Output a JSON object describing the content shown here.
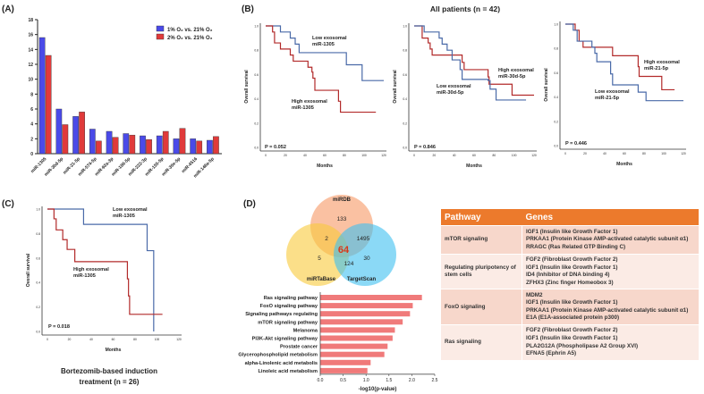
{
  "panel_labels": {
    "a": "(A)",
    "b": "(B)",
    "c": "(C)",
    "d": "(D)"
  },
  "b_title": "All patients (n = 42)",
  "c_caption": [
    "Bortezomib-based induction",
    "treatment (n = 26)"
  ],
  "colors": {
    "blue": "#4a4ae8",
    "red": "#e03a3a",
    "km_blue": "#4a6aa8",
    "km_red": "#b22a2a",
    "bars_d": "#f07a7a",
    "orange": "#ec7a2c"
  },
  "chart_data": [
    {
      "id": "A",
      "type": "bar",
      "categories": [
        "miR-1305",
        "miR-30d-5p",
        "miR-21-5p",
        "miR-574-5p",
        "miR-92a-3p",
        "miR-186-5p",
        "miR-222-3p",
        "miR-155-5p",
        "miR-30e-5p",
        "miR-4516",
        "miR-146a-5p"
      ],
      "series": [
        {
          "name": "1%  O₂ vs. 21%  O₂",
          "values": [
            15.6,
            6.0,
            5.0,
            3.3,
            3.0,
            2.7,
            2.4,
            2.4,
            2.0,
            2.0,
            1.8
          ]
        },
        {
          "name": "2%  O₂ vs. 21%  O₂",
          "values": [
            13.2,
            3.9,
            5.6,
            1.7,
            2.2,
            2.5,
            1.9,
            3.0,
            3.4,
            1.7,
            2.3
          ]
        }
      ],
      "ylim": [
        0,
        18
      ],
      "yticks": [
        0,
        2,
        4,
        6,
        8,
        10,
        12,
        14,
        16,
        18
      ],
      "legend": "top-right"
    },
    {
      "id": "B1",
      "type": "line",
      "xlabel": "Months",
      "ylabel": "Overall survival",
      "xticks": [
        0,
        20,
        40,
        60,
        80,
        100,
        120
      ],
      "yticks": [
        "0.0",
        "0.2",
        "0.4",
        "0.6",
        "0.8",
        "1.0"
      ],
      "pvalue": "P = 0.052",
      "series": [
        {
          "name": [
            "Low exosomal",
            "miR-1305"
          ],
          "color": "blue",
          "steps": [
            [
              0,
              1
            ],
            [
              15,
              0.95
            ],
            [
              25,
              0.9
            ],
            [
              30,
              0.85
            ],
            [
              34,
              0.78
            ],
            [
              82,
              0.68
            ],
            [
              98,
              0.55
            ]
          ],
          "end": 120
        },
        {
          "name": [
            "High exosomal",
            "miR-1305"
          ],
          "color": "red",
          "steps": [
            [
              0,
              1
            ],
            [
              7,
              0.95
            ],
            [
              9,
              0.86
            ],
            [
              15,
              0.81
            ],
            [
              25,
              0.76
            ],
            [
              28,
              0.71
            ],
            [
              43,
              0.66
            ],
            [
              47,
              0.62
            ],
            [
              48,
              0.57
            ],
            [
              50,
              0.47
            ],
            [
              74,
              0.38
            ],
            [
              76,
              0.29
            ]
          ],
          "end": 112
        }
      ]
    },
    {
      "id": "B2",
      "type": "line",
      "xlabel": "Months",
      "ylabel": "Overall survival",
      "xticks": [
        0,
        20,
        40,
        60,
        80,
        100,
        120
      ],
      "yticks": [
        "0.0",
        "0.2",
        "0.4",
        "0.6",
        "0.8",
        "1.0"
      ],
      "pvalue": "P = 0.846",
      "series": [
        {
          "name": [
            "High exosomal",
            "miR-30d-5p"
          ],
          "color": "red",
          "steps": [
            [
              0,
              1
            ],
            [
              8,
              0.9
            ],
            [
              14,
              0.86
            ],
            [
              16,
              0.81
            ],
            [
              18,
              0.76
            ],
            [
              48,
              0.7
            ],
            [
              50,
              0.64
            ],
            [
              74,
              0.58
            ],
            [
              75,
              0.52
            ],
            [
              98,
              0.43
            ]
          ],
          "end": 120
        },
        {
          "name": [
            "Low exosomal",
            "miR-30d-5p"
          ],
          "color": "blue",
          "steps": [
            [
              0,
              1
            ],
            [
              10,
              0.95
            ],
            [
              25,
              0.9
            ],
            [
              28,
              0.85
            ],
            [
              33,
              0.8
            ],
            [
              38,
              0.72
            ],
            [
              46,
              0.64
            ],
            [
              48,
              0.56
            ],
            [
              74,
              0.55
            ],
            [
              76,
              0.48
            ],
            [
              82,
              0.39
            ]
          ],
          "end": 112
        }
      ]
    },
    {
      "id": "B3",
      "type": "line",
      "xlabel": "Months",
      "ylabel": "Overall survival",
      "xticks": [
        0,
        20,
        40,
        60,
        80,
        100,
        120
      ],
      "yticks": [
        "0.0",
        "0.2",
        "0.4",
        "0.6",
        "0.8",
        "1.0"
      ],
      "pvalue": "P = 0.446",
      "series": [
        {
          "name": [
            "High exosomal",
            "miR-21-5p"
          ],
          "color": "red",
          "steps": [
            [
              0,
              1
            ],
            [
              10,
              0.95
            ],
            [
              14,
              0.86
            ],
            [
              18,
              0.81
            ],
            [
              48,
              0.74
            ],
            [
              74,
              0.65
            ],
            [
              75,
              0.57
            ],
            [
              98,
              0.46
            ]
          ],
          "end": 111
        },
        {
          "name": [
            "Low exosomal",
            "miR-21-5p"
          ],
          "color": "blue",
          "steps": [
            [
              0,
              1
            ],
            [
              8,
              0.95
            ],
            [
              12,
              0.86
            ],
            [
              27,
              0.81
            ],
            [
              30,
              0.76
            ],
            [
              32,
              0.69
            ],
            [
              46,
              0.59
            ],
            [
              48,
              0.5
            ],
            [
              74,
              0.44
            ],
            [
              82,
              0.37
            ]
          ],
          "end": 120
        }
      ]
    },
    {
      "id": "C",
      "type": "line",
      "xlabel": "Months",
      "ylabel": "Overall survival",
      "xticks": [
        0,
        20,
        40,
        60,
        80,
        100,
        120
      ],
      "yticks": [
        "0.0",
        "0.2",
        "0.4",
        "0.6",
        "0.8",
        "1.0"
      ],
      "pvalue": "P = 0.018",
      "series": [
        {
          "name": [
            "Low exosomal",
            "miR-1305"
          ],
          "color": "blue",
          "steps": [
            [
              0,
              1
            ],
            [
              33,
              0.875
            ],
            [
              91,
              0.66
            ],
            [
              97,
              0
            ]
          ],
          "end": 97
        },
        {
          "name": [
            "High exosomal",
            "miR-1305"
          ],
          "color": "red",
          "steps": [
            [
              0,
              1
            ],
            [
              6,
              0.92
            ],
            [
              8,
              0.83
            ],
            [
              14,
              0.75
            ],
            [
              18,
              0.67
            ],
            [
              25,
              0.57
            ],
            [
              73,
              0.43
            ],
            [
              74,
              0.29
            ],
            [
              75,
              0.14
            ]
          ],
          "end": 105
        }
      ]
    },
    {
      "id": "Venn",
      "type": "venn",
      "sets": [
        "miRDB",
        "miRTaBase",
        "TargetScan"
      ],
      "regions": {
        "miRDB_only": "133",
        "miRDB_miRTaBase": "2",
        "miRDB_TargetScan": "1495",
        "all": "64",
        "miRTaBase_only": "5",
        "miRTaBase_TargetScan": "124",
        "TargetScan_only": "30"
      }
    },
    {
      "id": "D",
      "type": "bar",
      "orientation": "horizontal",
      "xlabel": "-log10(p-value)",
      "xlim": [
        0,
        2.5
      ],
      "xticks": [
        "0.0",
        "0.5",
        "1.0",
        "1.5",
        "2.0",
        "2.5"
      ],
      "categories": [
        "Ras signaling pathway",
        "FoxO signaling pathway",
        "Signaling pathways regulating",
        "mTOR signaling pathway",
        "Melanoma",
        "PI3K-Akt signaling pathway",
        "Prostate cancer",
        "Glycerophospholipid metabolism",
        "alpha-Linolenic acid metabolis",
        "Linoleic acid metabolism"
      ],
      "values": [
        2.22,
        2.02,
        1.96,
        1.8,
        1.63,
        1.58,
        1.47,
        1.4,
        1.1,
        1.03
      ]
    }
  ],
  "table": {
    "headers": [
      "Pathway",
      "Genes"
    ],
    "rows": [
      {
        "pathway": "mTOR signaling",
        "genes": [
          "IGF1 (Insulin like Growth Factor 1)",
          "PRKAA1 (Protein Kinase AMP-activated catalytic subunit α1)",
          "RRAGC (Ras Related GTP Binding C)"
        ]
      },
      {
        "pathway": "Regulating pluripotency of stem cells",
        "genes": [
          "FGF2 (Fibroblast Growth Factor 2)",
          "IGF1 (Insulin like Growth Factor 1)",
          "ID4 (Inhibitor of DNA binding 4)",
          "ZFHX3 (Zinc finger Homeobox 3)"
        ]
      },
      {
        "pathway": "FoxO signaling",
        "genes": [
          "MDM2",
          "IGF1 (Insulin like Growth Factor 1)",
          "PRKAA1 (Protein Kinase AMP-activated catalytic subunit α1)",
          "E1A (E1A-associated protein p300)"
        ]
      },
      {
        "pathway": "Ras signaling",
        "genes": [
          "FGF2 (Fibroblast Growth Factor 2)",
          "IGF1 (Insulin like Growth Factor 1)",
          "PLA2G12A (Phospholipase A2 Group XVI)",
          "EFNA5 (Ephrin A5)"
        ]
      }
    ]
  }
}
